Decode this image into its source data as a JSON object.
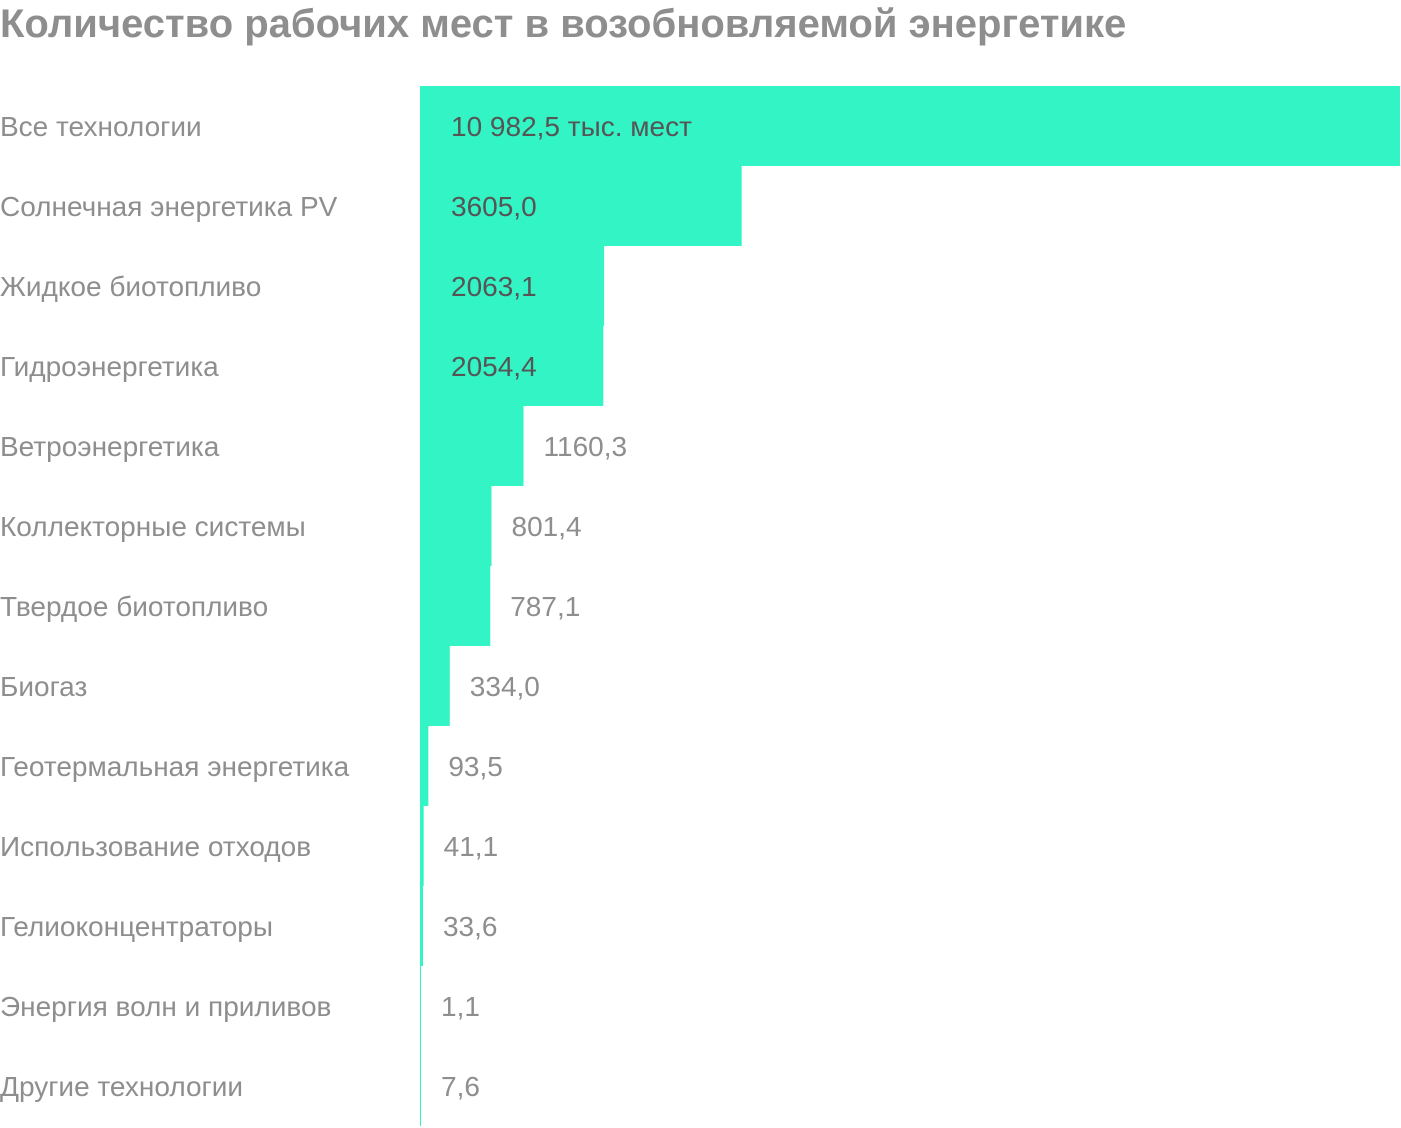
{
  "chart_data": {
    "type": "bar",
    "orientation": "horizontal",
    "title": "Количество рабочих мест в возобновляемой энергетике",
    "categories": [
      "Все технологии",
      "Солнечная энергетика PV",
      "Жидкое биотопливо",
      "Гидроэнергетика",
      "Ветроэнергетика",
      "Коллекторные системы",
      "Твердое биотопливо",
      "Биогаз",
      "Геотермальная энергетика",
      "Использование отходов",
      "Гелиоконцентраторы",
      "Энергия волн и приливов",
      "Другие технологии"
    ],
    "values": [
      10982.5,
      3605.0,
      2063.1,
      2054.4,
      1160.3,
      801.4,
      787.1,
      334.0,
      93.5,
      41.1,
      33.6,
      1.1,
      7.6
    ],
    "value_labels": [
      "10 982,5 тыс. мест",
      "3605,0",
      "2063,1",
      "2054,4",
      "1160,3",
      "801,4",
      "787,1",
      "334,0",
      "93,5",
      "41,1",
      "33,6",
      "1,1",
      "7,6"
    ],
    "xlim": [
      0,
      10982.5
    ],
    "grid": false,
    "legend": "none",
    "colors": {
      "bar": "#33f4c5",
      "label_text": "#8e8e8e",
      "inside_label_text": "#555555",
      "title_text": "#8e8e8e"
    }
  }
}
